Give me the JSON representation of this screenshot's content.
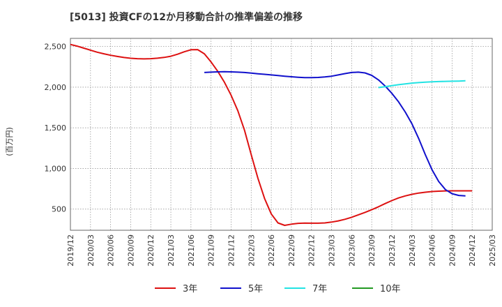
{
  "chart_data": {
    "type": "line",
    "title": "[5013]  投資CFの12か月移動合計の推準偏差の推移",
    "ylabel": "(百万円)",
    "xlabel": "",
    "ylim": [
      240,
      2600
    ],
    "y_ticks": [
      500,
      1000,
      1500,
      2000,
      2500
    ],
    "y_tick_labels": [
      "500",
      "1,000",
      "1,500",
      "2,000",
      "2,500"
    ],
    "x_tick_labels": [
      "2019/12",
      "2020/03",
      "2020/06",
      "2020/09",
      "2020/12",
      "2021/03",
      "2021/06",
      "2021/09",
      "2021/12",
      "2022/03",
      "2022/06",
      "2022/09",
      "2022/12",
      "2023/03",
      "2023/06",
      "2023/09",
      "2023/12",
      "2024/03",
      "2024/06",
      "2024/09",
      "2024/12",
      "2025/03"
    ],
    "grid": true,
    "legend_position": "bottom",
    "series": [
      {
        "name": "3年",
        "color": "#dd1111",
        "values": [
          2525,
          2505,
          2480,
          2455,
          2430,
          2410,
          2392,
          2378,
          2365,
          2355,
          2350,
          2348,
          2350,
          2356,
          2366,
          2380,
          2405,
          2435,
          2460,
          2462,
          2410,
          2310,
          2195,
          2060,
          1900,
          1710,
          1470,
          1170,
          880,
          630,
          440,
          330,
          300,
          315,
          325,
          328,
          327,
          327,
          330,
          340,
          355,
          375,
          400,
          430,
          460,
          492,
          528,
          568,
          605,
          637,
          662,
          682,
          697,
          708,
          716,
          721,
          724,
          725,
          725,
          725,
          725
        ]
      },
      {
        "name": "5年",
        "color": "#1010cc",
        "values": [
          null,
          null,
          null,
          null,
          null,
          null,
          null,
          null,
          null,
          null,
          null,
          null,
          null,
          null,
          null,
          null,
          null,
          null,
          null,
          null,
          2180,
          2185,
          2188,
          2190,
          2188,
          2185,
          2180,
          2173,
          2165,
          2158,
          2150,
          2143,
          2135,
          2128,
          2122,
          2118,
          2117,
          2119,
          2125,
          2135,
          2150,
          2167,
          2180,
          2185,
          2175,
          2145,
          2090,
          2015,
          1925,
          1820,
          1695,
          1550,
          1370,
          1170,
          985,
          840,
          740,
          690,
          668,
          662
        ]
      },
      {
        "name": "7年",
        "color": "#22e3e3",
        "values": [
          null,
          null,
          null,
          null,
          null,
          null,
          null,
          null,
          null,
          null,
          null,
          null,
          null,
          null,
          null,
          null,
          null,
          null,
          null,
          null,
          null,
          null,
          null,
          null,
          null,
          null,
          null,
          null,
          null,
          null,
          null,
          null,
          null,
          null,
          null,
          null,
          null,
          null,
          null,
          null,
          null,
          null,
          null,
          null,
          null,
          null,
          1995,
          2005,
          2018,
          2030,
          2040,
          2050,
          2056,
          2062,
          2066,
          2069,
          2071,
          2073,
          2075,
          2078
        ]
      },
      {
        "name": "10年",
        "color": "#229922",
        "values": []
      }
    ]
  }
}
